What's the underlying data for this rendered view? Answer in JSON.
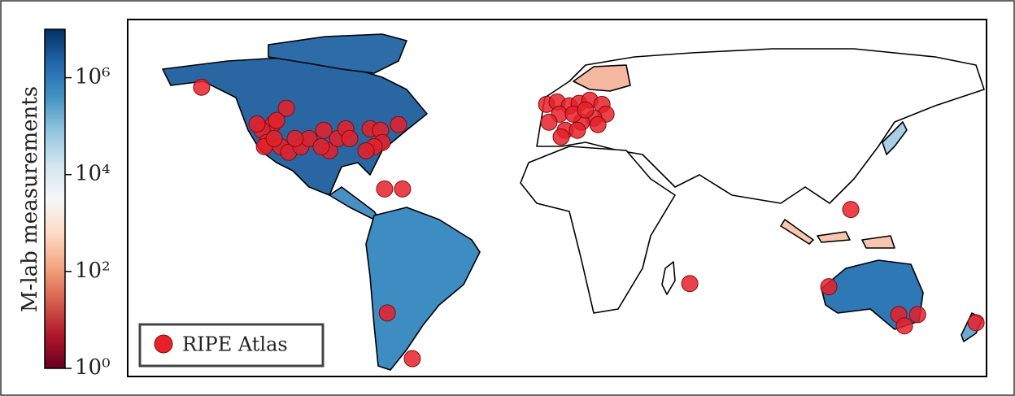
{
  "chart_data": {
    "type": "map",
    "colorbar": {
      "label": "M-lab measurements",
      "log": true,
      "lim": [
        1,
        10000000
      ],
      "ticks": [
        {
          "value": 1,
          "label": "10⁰"
        },
        {
          "value": 100,
          "label": "10²"
        },
        {
          "value": 10000,
          "label": "10⁴"
        },
        {
          "value": 1000000,
          "label": "10⁶"
        }
      ],
      "colors": [
        "#67001f",
        "#b2182b",
        "#d6604d",
        "#f4a582",
        "#fddbc7",
        "#f7f7f7",
        "#d1e5f0",
        "#92c5de",
        "#4393c3",
        "#2166ac",
        "#053061"
      ]
    },
    "xlim": [
      -180,
      180
    ],
    "ylim": [
      -62,
      84
    ],
    "legend": "lower left",
    "series": [
      {
        "name": "RIPE Atlas",
        "color": "#e8202a",
        "lon": [
          -149.0,
          -113.5,
          -119,
          -117.6,
          -123.7,
          -121.7,
          -122.7,
          -115.9,
          -112.5,
          -107.4,
          -104,
          -97.8,
          -95.4,
          -92,
          -88.6,
          -86.9,
          -78.4,
          -74,
          -73.3,
          -76.7,
          -80.1,
          -66.5,
          -118.6,
          -125.8,
          -98.9,
          -109.8,
          -72.3,
          -64.8,
          -4.4,
          0,
          5.1,
          9.2,
          13.7,
          18.8,
          20.5,
          15.4,
          10.2,
          1.0,
          -3.4,
          3.4,
          8.5,
          17.1,
          1.7,
          6.8,
          11.9,
          -71.2,
          -60.7,
          123.1,
          55.6,
          113.9,
          143.2,
          145.6,
          151.1,
          175.6
        ],
        "lat": [
          56.3,
          47.7,
          41.3,
          42.7,
          38.7,
          33.7,
          32,
          32,
          29.7,
          32,
          35.3,
          38.7,
          30.3,
          35.3,
          39.3,
          35.3,
          39.3,
          38.7,
          33.7,
          32,
          30.3,
          41,
          35.3,
          41.3,
          32,
          35.3,
          14.7,
          14.7,
          49.3,
          50.3,
          48.7,
          49.7,
          51,
          49.3,
          45.3,
          43.7,
          42,
          45.3,
          42,
          38.7,
          38.7,
          41,
          36,
          45.3,
          47,
          -36,
          -54.7,
          6.3,
          -24,
          -25.3,
          -36.7,
          -41.3,
          -36.7,
          -40
        ]
      }
    ]
  }
}
